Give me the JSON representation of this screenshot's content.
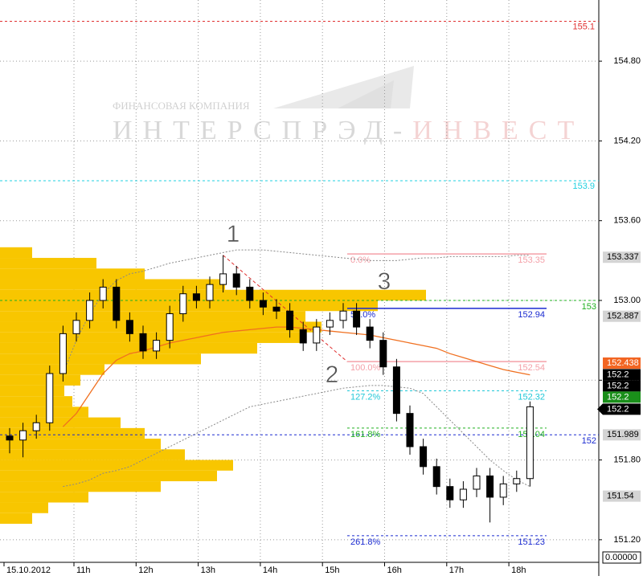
{
  "chart_data": {
    "type": "candlestick",
    "watermark_small": "ФИНАНСОВАЯ КОМПАНИЯ",
    "watermark_large": "ИНТЕРСПРЭД-",
    "watermark_large_accent": "ИНВЕСТ",
    "annotations": [
      "1",
      "2",
      "3"
    ],
    "time_labels": [
      "15.10.2012",
      "11h",
      "12h",
      "13h",
      "14h",
      "15h",
      "16h",
      "17h",
      "18h"
    ],
    "ylim": [
      151.03,
      155.26
    ],
    "yticks": [
      {
        "value": 151.2,
        "label": "151.20"
      },
      {
        "value": 151.8,
        "label": "151.80"
      },
      {
        "value": 152.4,
        "label": "152.40"
      },
      {
        "value": 153,
        "label": "153.00"
      },
      {
        "value": 153.6,
        "label": "153.60"
      },
      {
        "value": 154.2,
        "label": "154.20"
      },
      {
        "value": 154.8,
        "label": "154.80"
      }
    ],
    "grid": true,
    "open": [
      151.98,
      151.95,
      152.02,
      152.08,
      152.45,
      152.75,
      152.85,
      153.0,
      153.1,
      152.85,
      152.75,
      152.62,
      152.7,
      152.9,
      153.05,
      153.0,
      153.12,
      153.2,
      153.1,
      153.0,
      152.95,
      152.92,
      152.78,
      152.68,
      152.8,
      152.85,
      152.92,
      152.8,
      152.7,
      152.5,
      152.15,
      151.9,
      151.75,
      151.6,
      151.5,
      151.58,
      151.68,
      151.52,
      151.62,
      151.66
    ],
    "high": [
      152.04,
      152.08,
      152.14,
      152.51,
      152.81,
      152.91,
      153.06,
      153.16,
      153.16,
      152.91,
      152.81,
      152.76,
      152.96,
      153.11,
      153.11,
      153.18,
      153.34,
      153.26,
      153.16,
      153.06,
      153.01,
      152.98,
      152.84,
      152.86,
      152.91,
      152.98,
      152.98,
      152.86,
      152.76,
      152.56,
      152.21,
      151.96,
      151.81,
      151.66,
      151.64,
      151.74,
      151.74,
      151.68,
      151.72,
      152.24
    ],
    "low": [
      151.85,
      151.82,
      151.96,
      152.02,
      152.39,
      152.69,
      152.79,
      152.94,
      152.79,
      152.69,
      152.56,
      152.56,
      152.64,
      152.84,
      152.94,
      152.94,
      153.06,
      153.04,
      152.94,
      152.89,
      152.86,
      152.72,
      152.62,
      152.62,
      152.74,
      152.79,
      152.74,
      152.64,
      152.44,
      152.09,
      151.84,
      151.69,
      151.54,
      151.44,
      151.44,
      151.52,
      151.33,
      151.46,
      151.56,
      151.6
    ],
    "close": [
      151.95,
      152.02,
      152.08,
      152.45,
      152.75,
      152.85,
      153.0,
      153.1,
      152.85,
      152.75,
      152.62,
      152.7,
      152.9,
      153.05,
      153.0,
      153.12,
      153.2,
      153.1,
      153.0,
      152.95,
      152.92,
      152.78,
      152.68,
      152.8,
      152.85,
      152.92,
      152.8,
      152.7,
      152.5,
      152.15,
      151.9,
      151.75,
      151.6,
      151.5,
      151.58,
      151.68,
      151.52,
      151.62,
      151.66,
      152.2
    ],
    "bull_color": "#ffffff",
    "bear_color": "#000000",
    "ma": {
      "color": "#f07020",
      "values": [
        null,
        null,
        null,
        null,
        152.05,
        152.15,
        152.3,
        152.45,
        152.55,
        152.6,
        152.62,
        152.65,
        152.68,
        152.7,
        152.72,
        152.74,
        152.76,
        152.77,
        152.78,
        152.79,
        152.8,
        152.8,
        152.79,
        152.78,
        152.77,
        152.76,
        152.75,
        152.74,
        152.72,
        152.7,
        152.68,
        152.66,
        152.64,
        152.6,
        152.57,
        152.54,
        152.51,
        152.48,
        152.46,
        152.44
      ]
    },
    "upper_band": {
      "color": "#888888",
      "values": [
        null,
        null,
        null,
        null,
        152.45,
        152.7,
        152.9,
        153.05,
        153.15,
        153.2,
        153.22,
        153.25,
        153.28,
        153.3,
        153.32,
        153.34,
        153.36,
        153.38,
        153.38,
        153.38,
        153.37,
        153.36,
        153.35,
        153.34,
        153.33,
        153.32,
        153.31,
        153.3,
        153.3,
        153.3,
        153.31,
        153.32,
        153.32,
        153.33,
        153.33,
        153.33,
        153.33,
        153.33,
        153.34,
        153.34
      ]
    },
    "lower_band": {
      "color": "#888888",
      "values": [
        null,
        null,
        null,
        null,
        151.6,
        151.62,
        151.65,
        151.7,
        151.72,
        151.75,
        151.8,
        151.85,
        151.9,
        151.95,
        152.0,
        152.05,
        152.1,
        152.15,
        152.2,
        152.22,
        152.24,
        152.26,
        152.28,
        152.3,
        152.32,
        152.34,
        152.35,
        152.36,
        152.36,
        152.35,
        152.34,
        152.3,
        152.2,
        152.1,
        152.0,
        151.9,
        151.8,
        151.72,
        151.65,
        151.6
      ]
    },
    "profile": {
      "color": "#f8c600",
      "prices": [
        151.36,
        151.44,
        151.52,
        151.6,
        151.68,
        151.76,
        151.84,
        151.92,
        152.0,
        152.08,
        152.16,
        152.24,
        152.32,
        152.4,
        152.48,
        152.56,
        152.64,
        152.72,
        152.8,
        152.88,
        152.96,
        153.04,
        153.12,
        153.2,
        153.28,
        153.36
      ],
      "volumes": [
        40,
        60,
        110,
        200,
        270,
        290,
        230,
        200,
        180,
        150,
        110,
        90,
        80,
        100,
        130,
        250,
        320,
        380,
        400,
        380,
        470,
        530,
        280,
        180,
        120,
        40
      ]
    },
    "levels": [
      {
        "value": 155.1,
        "label": "155.1",
        "color": "#e03030"
      },
      {
        "value": 153.9,
        "label": "153.9",
        "color": "#20d0e0"
      },
      {
        "value": 153,
        "label": "153",
        "color": "#20b020"
      },
      {
        "value": 151.989,
        "label": "152",
        "color": "#1a2ad0"
      }
    ],
    "fib": [
      {
        "name": "0.0%",
        "value": 153.35,
        "color": "#f4a0a8"
      },
      {
        "name": "50.0%",
        "value": 152.94,
        "color": "#1a2ad0"
      },
      {
        "name": "100.0%",
        "value": 152.54,
        "color": "#f4a0a8"
      },
      {
        "name": "127.2%",
        "value": 152.32,
        "color": "#20c8d8"
      },
      {
        "name": "161.8%",
        "value": 152.04,
        "color": "#20b020"
      },
      {
        "name": "261.8%",
        "value": 151.23,
        "color": "#1a2ad0"
      }
    ],
    "price_boxes": [
      {
        "value": 153.337,
        "color": "#d4d4d4",
        "text_color": "#000000"
      },
      {
        "value": 152.887,
        "color": "#d4d4d4",
        "text_color": "#000000"
      },
      {
        "value": 152.438,
        "color": "#f26522",
        "text_color": "#ffffff"
      },
      {
        "value": 152.2,
        "color": "#000000",
        "text_color": "#ffffff"
      },
      {
        "value": 152.2,
        "color": "#000000",
        "text_color": "#ffffff"
      },
      {
        "value": 152.2,
        "color": "#1a8f1a",
        "text_color": "#ffffff"
      },
      {
        "value": 152.2,
        "color": "#000000",
        "text_color": "#ffffff"
      },
      {
        "value": 151.989,
        "color": "#d4d4d4",
        "text_color": "#000000"
      },
      {
        "value": 151.54,
        "color": "#d4d4d4",
        "text_color": "#000000"
      }
    ],
    "footer_value": "0.00000"
  }
}
